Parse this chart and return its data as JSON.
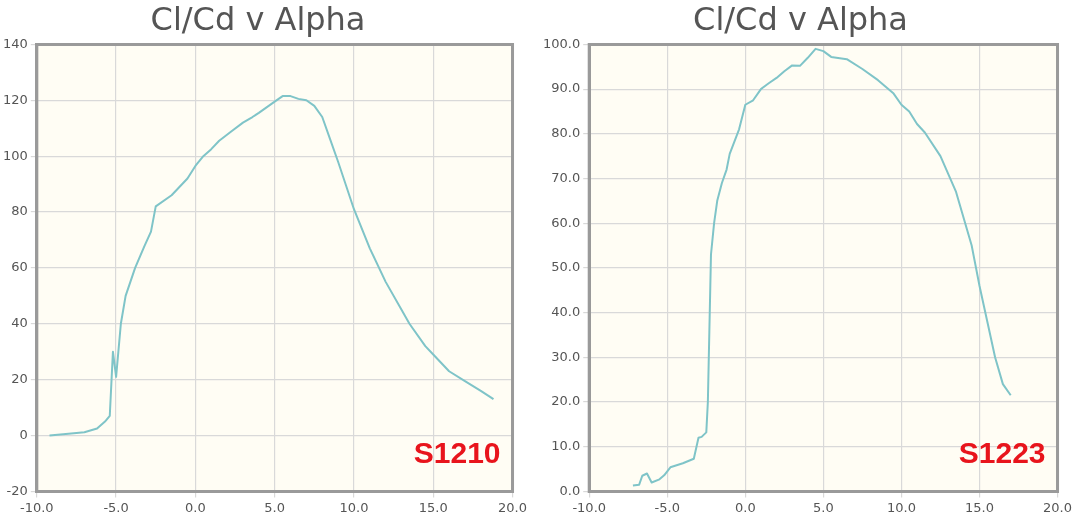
{
  "chart_data": [
    {
      "type": "line",
      "title": "Cl/Cd v Alpha",
      "annotations": [
        "S1210"
      ],
      "grid": true,
      "marker": "none",
      "xlim": [
        -10,
        20
      ],
      "xticks": [
        {
          "value": -10,
          "label": "-10.0"
        },
        {
          "value": -5,
          "label": "-5.0"
        },
        {
          "value": 0,
          "label": "0.0"
        },
        {
          "value": 5,
          "label": "5.0"
        },
        {
          "value": 10,
          "label": "10.0"
        },
        {
          "value": 15,
          "label": "15.0"
        },
        {
          "value": 20,
          "label": "20.0"
        }
      ],
      "ylim": [
        -20,
        140
      ],
      "yticks": [
        -20,
        0,
        20,
        40,
        60,
        80,
        100,
        120,
        140
      ],
      "series": [
        {
          "color": "#7fc4c8",
          "x": [
            -9.2,
            -8,
            -7,
            -6.2,
            -5.7,
            -5.4,
            -5.2,
            -5,
            -4.7,
            -4.4,
            -3.8,
            -3.2,
            -2.8,
            -2.5,
            -1.5,
            -0.5,
            0,
            0.5,
            1,
            1.5,
            2.3,
            3,
            3.6,
            4,
            5,
            5.5,
            6,
            6.5,
            7,
            7.5,
            8,
            8.5,
            9,
            10,
            11,
            12,
            13,
            13.5,
            14.5,
            15,
            16,
            17,
            18,
            18.8
          ],
          "values": [
            0,
            0.6,
            1.2,
            2.5,
            5,
            7,
            30,
            21,
            40,
            50,
            60,
            68,
            73,
            82,
            86,
            92,
            96.5,
            100,
            102.5,
            105.5,
            109,
            112,
            114,
            115.5,
            119.5,
            121.5,
            121.5,
            120.5,
            120,
            118,
            114,
            106,
            98,
            81,
            67,
            55,
            45,
            40,
            32,
            29,
            23,
            19.5,
            16,
            13
          ]
        }
      ]
    },
    {
      "type": "line",
      "title": "Cl/Cd v Alpha",
      "annotations": [
        "S1223"
      ],
      "grid": true,
      "marker": "none",
      "xlim": [
        -10,
        20
      ],
      "xticks": [
        {
          "value": -10,
          "label": "-10.0"
        },
        {
          "value": -5,
          "label": "-5.0"
        },
        {
          "value": 0,
          "label": "0.0"
        },
        {
          "value": 5,
          "label": "5.0"
        },
        {
          "value": 10,
          "label": "10.0"
        },
        {
          "value": 15,
          "label": "15.0"
        },
        {
          "value": 20,
          "label": "20.0"
        }
      ],
      "ylim": [
        0,
        100
      ],
      "yticks": [
        {
          "value": 0,
          "label": "0.0"
        },
        {
          "value": 10,
          "label": "10.0"
        },
        {
          "value": 20,
          "label": "20.0"
        },
        {
          "value": 30,
          "label": "30.0"
        },
        {
          "value": 40,
          "label": "40.0"
        },
        {
          "value": 50,
          "label": "50.0"
        },
        {
          "value": 60,
          "label": "60.0"
        },
        {
          "value": 70,
          "label": "70.0"
        },
        {
          "value": 80,
          "label": "80.0"
        },
        {
          "value": 90,
          "label": "90.0"
        },
        {
          "value": 100,
          "label": "100.0"
        }
      ],
      "series": [
        {
          "color": "#7fc4c8",
          "x": [
            -7.2,
            -6.8,
            -6.6,
            -6.3,
            -6,
            -5.5,
            -5.2,
            -4.8,
            -4,
            -3.3,
            -3,
            -2.8,
            -2.5,
            -2.4,
            -2.2,
            -2,
            -1.8,
            -1.5,
            -1.2,
            -1,
            -0.4,
            0,
            0.5,
            1,
            1.5,
            2,
            2.5,
            3,
            3.5,
            4,
            4.5,
            5,
            5.5,
            6.5,
            7.5,
            8.5,
            9.5,
            10,
            10.5,
            11,
            11.5,
            12.5,
            13.5,
            14.5,
            15,
            15.5,
            16,
            16.5,
            17
          ],
          "values": [
            1.3,
            1.5,
            3.5,
            4,
            2,
            2.7,
            3.6,
            5.4,
            6.3,
            7.3,
            12,
            12.2,
            13.2,
            20,
            53,
            60,
            65,
            69,
            72,
            75.5,
            81,
            86.5,
            87.5,
            90,
            91.3,
            92.5,
            94,
            95.3,
            95.2,
            97,
            99,
            98.5,
            97.2,
            96.7,
            94.5,
            92,
            89,
            86.5,
            85,
            82.2,
            80.3,
            75,
            67,
            55,
            46,
            38,
            30,
            24,
            21.5
          ]
        }
      ]
    }
  ]
}
